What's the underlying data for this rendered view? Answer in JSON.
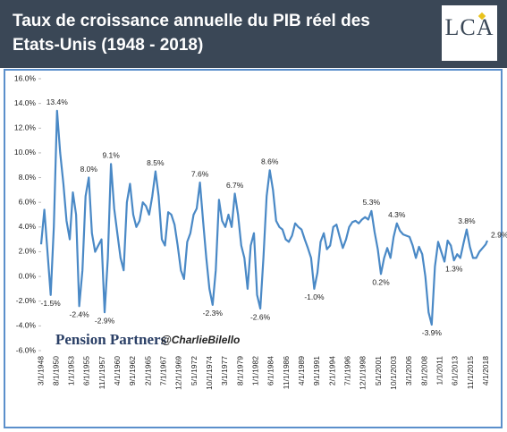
{
  "chart_data": {
    "type": "line",
    "title": "Taux de croissance annuelle du PIB réel des Etats-Unis (1948 - 2018)",
    "logo": "LCA",
    "watermarks": [
      "Pension Partners",
      "@CharlieBilello"
    ],
    "x": [
      "3/1/1948",
      "9/1/1948",
      "3/1/1949",
      "9/1/1949",
      "3/1/1950",
      "9/1/1950",
      "3/1/1951",
      "9/1/1951",
      "3/1/1952",
      "9/1/1952",
      "3/1/1953",
      "9/1/1953",
      "3/1/1954",
      "9/1/1954",
      "3/1/1955",
      "9/1/1955",
      "3/1/1956",
      "9/1/1956",
      "3/1/1957",
      "9/1/1957",
      "3/1/1958",
      "9/1/1958",
      "3/1/1959",
      "9/1/1959",
      "3/1/1960",
      "9/1/1960",
      "3/1/1961",
      "9/1/1961",
      "3/1/1962",
      "9/1/1962",
      "3/1/1963",
      "9/1/1963",
      "3/1/1964",
      "9/1/1964",
      "3/1/1965",
      "9/1/1965",
      "3/1/1966",
      "9/1/1966",
      "3/1/1967",
      "9/1/1967",
      "3/1/1968",
      "9/1/1968",
      "3/1/1969",
      "9/1/1969",
      "3/1/1970",
      "9/1/1970",
      "3/1/1971",
      "9/1/1971",
      "3/1/1972",
      "9/1/1972",
      "3/1/1973",
      "9/1/1973",
      "3/1/1974",
      "9/1/1974",
      "3/1/1975",
      "9/1/1975",
      "3/1/1976",
      "9/1/1976",
      "3/1/1977",
      "9/1/1977",
      "3/1/1978",
      "9/1/1978",
      "3/1/1979",
      "9/1/1979",
      "3/1/1980",
      "9/1/1980",
      "3/1/1981",
      "9/1/1981",
      "3/1/1982",
      "9/1/1982",
      "3/1/1983",
      "9/1/1983",
      "3/1/1984",
      "9/1/1984",
      "3/1/1985",
      "9/1/1985",
      "3/1/1986",
      "9/1/1986",
      "3/1/1987",
      "9/1/1987",
      "3/1/1988",
      "9/1/1988",
      "3/1/1989",
      "9/1/1989",
      "3/1/1990",
      "9/1/1990",
      "3/1/1991",
      "9/1/1991",
      "3/1/1992",
      "9/1/1992",
      "3/1/1993",
      "9/1/1993",
      "3/1/1994",
      "9/1/1994",
      "3/1/1995",
      "9/1/1995",
      "3/1/1996",
      "9/1/1996",
      "3/1/1997",
      "9/1/1997",
      "3/1/1998",
      "9/1/1998",
      "3/1/1999",
      "9/1/1999",
      "3/1/2000",
      "9/1/2000",
      "3/1/2001",
      "9/1/2001",
      "3/1/2002",
      "9/1/2002",
      "3/1/2003",
      "9/1/2003",
      "3/1/2004",
      "9/1/2004",
      "3/1/2005",
      "9/1/2005",
      "3/1/2006",
      "9/1/2006",
      "3/1/2007",
      "9/1/2007",
      "3/1/2008",
      "9/1/2008",
      "3/1/2009",
      "9/1/2009",
      "3/1/2010",
      "9/1/2010",
      "3/1/2011",
      "9/1/2011",
      "3/1/2012",
      "9/1/2012",
      "3/1/2013",
      "9/1/2013",
      "3/1/2014",
      "9/1/2014",
      "3/1/2015",
      "9/1/2015",
      "3/1/2016",
      "9/1/2016",
      "3/1/2017",
      "9/1/2017",
      "3/1/2018",
      "6/1/2018"
    ],
    "series": [
      {
        "name": "PIB réel",
        "color": "#4a89c6",
        "values": [
          2.6,
          5.4,
          2.0,
          -1.5,
          4.0,
          13.4,
          10.0,
          7.5,
          4.5,
          3.0,
          6.8,
          5.0,
          -2.4,
          0.5,
          6.5,
          8.0,
          3.5,
          2.0,
          2.5,
          3.0,
          -2.9,
          1.5,
          9.1,
          5.5,
          3.5,
          1.5,
          0.5,
          6.0,
          7.5,
          5.0,
          4.0,
          4.5,
          6.0,
          5.7,
          5.0,
          6.5,
          8.5,
          6.5,
          3.0,
          2.5,
          5.2,
          5.0,
          4.2,
          2.5,
          0.5,
          -0.2,
          2.8,
          3.5,
          5.0,
          5.5,
          7.6,
          4.5,
          1.5,
          -1.0,
          -2.3,
          0.5,
          6.2,
          4.5,
          4.0,
          5.0,
          4.0,
          6.7,
          5.0,
          2.5,
          1.5,
          -1.0,
          2.5,
          3.5,
          -1.5,
          -2.6,
          1.5,
          6.5,
          8.6,
          7.0,
          4.5,
          4.0,
          3.8,
          3.0,
          2.8,
          3.3,
          4.3,
          4.0,
          3.8,
          3.0,
          2.3,
          1.5,
          -1.0,
          0.3,
          2.8,
          3.5,
          2.2,
          2.5,
          4.0,
          4.2,
          3.2,
          2.3,
          3.0,
          4.0,
          4.4,
          4.5,
          4.3,
          4.6,
          4.8,
          4.6,
          5.3,
          3.6,
          2.2,
          0.2,
          1.5,
          2.3,
          1.5,
          3.2,
          4.3,
          3.7,
          3.4,
          3.3,
          3.2,
          2.5,
          1.5,
          2.4,
          1.8,
          0.0,
          -2.9,
          -3.9,
          0.8,
          2.8,
          2.0,
          1.2,
          2.9,
          2.5,
          1.3,
          1.8,
          1.5,
          2.7,
          3.8,
          2.4,
          1.5,
          1.5,
          2.0,
          2.3,
          2.6,
          2.9
        ],
        "value_labels": [
          null,
          null,
          null,
          "-1.5%",
          null,
          "13.4%",
          null,
          null,
          null,
          null,
          null,
          null,
          "-2.4%",
          null,
          null,
          "8.0%",
          null,
          null,
          null,
          null,
          "-2.9%",
          null,
          "9.1%",
          null,
          null,
          null,
          null,
          null,
          null,
          null,
          null,
          null,
          null,
          null,
          null,
          null,
          "8.5%",
          null,
          null,
          null,
          null,
          null,
          null,
          null,
          null,
          null,
          null,
          null,
          null,
          null,
          "7.6%",
          null,
          null,
          null,
          "-2.3%",
          null,
          null,
          null,
          null,
          null,
          null,
          "6.7%",
          null,
          null,
          null,
          null,
          null,
          null,
          null,
          "-2.6%",
          null,
          null,
          "8.6%",
          null,
          null,
          null,
          null,
          null,
          null,
          null,
          null,
          null,
          null,
          null,
          null,
          null,
          "-1.0%",
          null,
          null,
          null,
          null,
          null,
          null,
          null,
          null,
          null,
          null,
          null,
          null,
          null,
          null,
          null,
          null,
          null,
          "5.3%",
          null,
          null,
          "0.2%",
          null,
          null,
          null,
          null,
          "4.3%",
          null,
          null,
          null,
          null,
          null,
          null,
          null,
          null,
          null,
          null,
          "-3.9%",
          null,
          null,
          null,
          null,
          null,
          null,
          "1.3%",
          null,
          null,
          null,
          "3.8%",
          null,
          null,
          null,
          null,
          null,
          null,
          "2.9%"
        ]
      }
    ],
    "xlim": [
      "3/1/1948",
      "6/1/2018"
    ],
    "xticks": [
      "3/1/1948",
      "8/1/1950",
      "1/1/1953",
      "6/1/1955",
      "11/1/1957",
      "4/1/1960",
      "9/1/1962",
      "2/1/1965",
      "7/1/1967",
      "12/1/1969",
      "5/1/1972",
      "10/1/1974",
      "3/1/1977",
      "8/1/1979",
      "1/1/1982",
      "6/1/1984",
      "11/1/1986",
      "4/1/1989",
      "9/1/1991",
      "2/1/1994",
      "7/1/1996",
      "12/1/1998",
      "5/1/2001",
      "10/1/2003",
      "3/1/2006",
      "8/1/2008",
      "1/1/2011",
      "6/1/2013",
      "11/1/2015",
      "4/1/2018"
    ],
    "ylim": [
      -6,
      16
    ],
    "yticks": [
      {
        "value": -6,
        "label": "-6.0%"
      },
      {
        "value": -4,
        "label": "-4.0%"
      },
      {
        "value": -2,
        "label": "-2.0%"
      },
      {
        "value": 0,
        "label": "0.0%"
      },
      {
        "value": 2,
        "label": "2.0%"
      },
      {
        "value": 4,
        "label": "4.0%"
      },
      {
        "value": 6,
        "label": "6.0%"
      },
      {
        "value": 8,
        "label": "8.0%"
      },
      {
        "value": 10,
        "label": "10.0%"
      },
      {
        "value": 12,
        "label": "12.0%"
      },
      {
        "value": 14,
        "label": "14.0%"
      },
      {
        "value": 16,
        "label": "16.0%"
      }
    ],
    "grid": false
  }
}
